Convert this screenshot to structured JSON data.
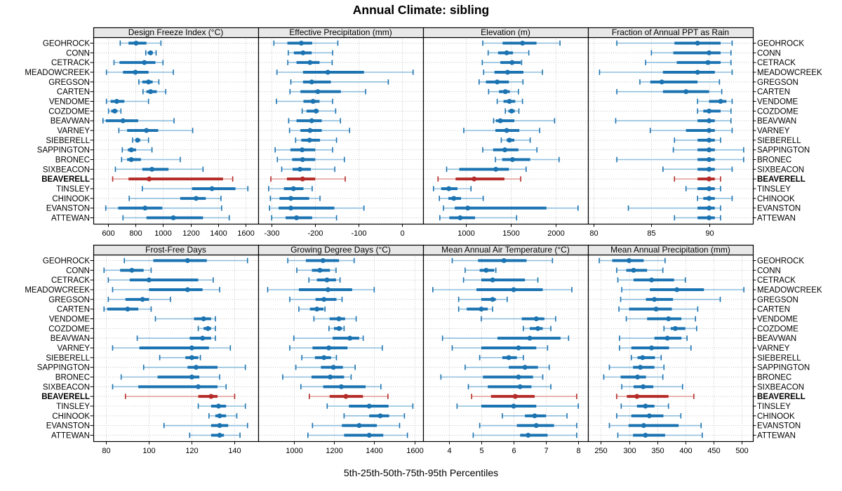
{
  "title": "Annual Climate: sibling",
  "footer": "5th-25th-50th-75th-95th Percentiles",
  "highlight_station": "BEAVERELL",
  "colors": {
    "series": "#1b73b1",
    "series_light": "#8fbedd",
    "highlight": "#b42b28",
    "highlight_light": "#e2a29e",
    "grid": "#c8c8c8",
    "header_bg": "#e8e8e8",
    "border": "#000000"
  },
  "stations": [
    "GEOHROCK",
    "CONN",
    "CETRACK",
    "MEADOWCREEK",
    "GREGSON",
    "CARTEN",
    "VENDOME",
    "COZDOME",
    "BEAVWAN",
    "VARNEY",
    "SIEBERELL",
    "SAPPINGTON",
    "BRONEC",
    "SIXBEACON",
    "BEAVERELL",
    "TINSLEY",
    "CHINOOK",
    "EVANSTON",
    "ATTEWAN"
  ],
  "chart_data": {
    "type": "dot-whisker",
    "percentiles": [
      5,
      25,
      50,
      75,
      95
    ],
    "layout": "2 rows x 4 columns of panels, shared station axis, highlighted station in red",
    "panels": [
      {
        "title": "Design Freeze Index (°C)",
        "xlim": [
          495,
          1690
        ],
        "ticks": [
          600,
          800,
          1000,
          1200,
          1400,
          1600
        ],
        "values": [
          [
            690,
            750,
            805,
            880,
            985
          ],
          [
            875,
            890,
            910,
            925,
            950
          ],
          [
            645,
            685,
            865,
            945,
            1000
          ],
          [
            590,
            710,
            800,
            895,
            1075
          ],
          [
            825,
            850,
            895,
            925,
            970
          ],
          [
            855,
            880,
            910,
            955,
            1020
          ],
          [
            590,
            620,
            665,
            720,
            895
          ],
          [
            605,
            625,
            650,
            670,
            695
          ],
          [
            565,
            585,
            710,
            820,
            1080
          ],
          [
            680,
            740,
            880,
            965,
            1215
          ],
          [
            780,
            800,
            815,
            835,
            895
          ],
          [
            705,
            745,
            770,
            805,
            920
          ],
          [
            700,
            740,
            770,
            840,
            1125
          ],
          [
            655,
            850,
            920,
            1040,
            1290
          ],
          [
            635,
            750,
            900,
            1435,
            1505
          ],
          [
            850,
            1210,
            1355,
            1525,
            1615
          ],
          [
            755,
            1125,
            1240,
            1310,
            1420
          ],
          [
            585,
            675,
            870,
            995,
            1425
          ],
          [
            710,
            880,
            1075,
            1290,
            1480
          ]
        ]
      },
      {
        "title": "Effective Precipitation (mm)",
        "xlim": [
          -331,
          48
        ],
        "ticks": [
          -300,
          -200,
          -100,
          0
        ],
        "values": [
          [
            -295,
            -264,
            -232,
            -207,
            -148
          ],
          [
            -262,
            -249,
            -228,
            -208,
            -160
          ],
          [
            -263,
            -243,
            -212,
            -190,
            -161
          ],
          [
            -288,
            -228,
            -171,
            -88,
            25
          ],
          [
            -256,
            -228,
            -208,
            -164,
            -32
          ],
          [
            -258,
            -234,
            -194,
            -141,
            -84
          ],
          [
            -289,
            -227,
            -205,
            -190,
            -160
          ],
          [
            -230,
            -220,
            -198,
            -192,
            -153
          ],
          [
            -261,
            -243,
            -208,
            -185,
            -142
          ],
          [
            -259,
            -234,
            -212,
            -185,
            -121
          ],
          [
            -245,
            -232,
            -213,
            -189,
            -151
          ],
          [
            -292,
            -257,
            -230,
            -200,
            -160
          ],
          [
            -287,
            -253,
            -229,
            -200,
            -133
          ],
          [
            -277,
            -252,
            -235,
            -210,
            -155
          ],
          [
            -302,
            -265,
            -229,
            -200,
            -131
          ],
          [
            -307,
            -272,
            -250,
            -227,
            -207
          ],
          [
            -303,
            -282,
            -256,
            -214,
            -189
          ],
          [
            -305,
            -284,
            -256,
            -156,
            -88
          ],
          [
            -300,
            -268,
            -243,
            -207,
            -151
          ]
        ]
      },
      {
        "title": "Elevation (m)",
        "xlim": [
          530,
          2355
        ],
        "ticks": [
          1000,
          1500,
          2000
        ],
        "values": [
          [
            1190,
            1410,
            1630,
            1785,
            2045
          ],
          [
            1250,
            1360,
            1455,
            1525,
            1700
          ],
          [
            1185,
            1385,
            1515,
            1610,
            1620
          ],
          [
            1200,
            1320,
            1465,
            1640,
            1850
          ],
          [
            1150,
            1225,
            1350,
            1480,
            1635
          ],
          [
            1255,
            1370,
            1440,
            1490,
            1585
          ],
          [
            1350,
            1420,
            1485,
            1550,
            1630
          ],
          [
            1440,
            1475,
            1510,
            1545,
            1590
          ],
          [
            1310,
            1335,
            1385,
            1540,
            1985
          ],
          [
            980,
            1330,
            1455,
            1595,
            1820
          ],
          [
            1395,
            1455,
            1485,
            1540,
            1715
          ],
          [
            1190,
            1305,
            1435,
            1585,
            1790
          ],
          [
            1330,
            1405,
            1520,
            1715,
            2035
          ],
          [
            790,
            930,
            1335,
            1480,
            1670
          ],
          [
            695,
            890,
            1095,
            1430,
            1610
          ],
          [
            645,
            730,
            815,
            910,
            1060
          ],
          [
            710,
            810,
            870,
            950,
            1195
          ],
          [
            755,
            880,
            1025,
            1895,
            2245
          ],
          [
            715,
            820,
            940,
            1105,
            1565
          ]
        ]
      },
      {
        "title": "Fraction of Annual PPT as Rain",
        "xlim": [
          79.5,
          93.8
        ],
        "ticks": [
          80,
          85,
          90
        ],
        "values": [
          [
            82,
            87,
            89,
            91,
            92
          ],
          [
            85,
            86.9,
            90,
            91,
            91.9
          ],
          [
            84.5,
            87.2,
            89.9,
            91,
            91.9
          ],
          [
            80.5,
            86,
            89,
            90.5,
            92
          ],
          [
            84,
            84.9,
            85.9,
            89,
            90.9
          ],
          [
            82,
            86,
            88,
            90,
            91.1
          ],
          [
            89,
            90,
            91,
            91.5,
            92
          ],
          [
            89,
            89.5,
            90,
            91,
            91.9
          ],
          [
            81.9,
            89,
            90,
            90.5,
            91.9
          ],
          [
            84.9,
            88,
            90,
            90.5,
            92
          ],
          [
            87,
            89,
            90,
            90.5,
            91
          ],
          [
            86.9,
            89,
            90,
            90.5,
            93
          ],
          [
            82,
            89,
            90,
            90.5,
            93
          ],
          [
            86,
            89,
            90,
            90.5,
            92
          ],
          [
            87,
            89,
            90,
            90.5,
            91
          ],
          [
            88,
            89,
            90,
            90.5,
            91
          ],
          [
            89,
            89.5,
            90,
            90.5,
            92
          ],
          [
            83,
            89,
            90,
            90.5,
            91
          ],
          [
            87,
            89,
            90,
            90.5,
            91
          ]
        ]
      },
      {
        "title": "Frost-Free Days",
        "xlim": [
          74,
          151
        ],
        "ticks": [
          80,
          100,
          120,
          140
        ],
        "values": [
          [
            88.5,
            102,
            118,
            127,
            146
          ],
          [
            79,
            86.5,
            92,
            97.5,
            101
          ],
          [
            81,
            91,
            100,
            123,
            130
          ],
          [
            83,
            100,
            118,
            125,
            133
          ],
          [
            81,
            89,
            97,
            100,
            110
          ],
          [
            79,
            80.5,
            90,
            95,
            101
          ],
          [
            103,
            121,
            125.5,
            129,
            131
          ],
          [
            123,
            125.5,
            127.5,
            129,
            131
          ],
          [
            94.5,
            119,
            125,
            129,
            131
          ],
          [
            83,
            95.5,
            120,
            128,
            138
          ],
          [
            105,
            117,
            120,
            123,
            124
          ],
          [
            97.5,
            118,
            122,
            132,
            145
          ],
          [
            87,
            104,
            120,
            123.5,
            133
          ],
          [
            83,
            95,
            123,
            132,
            136
          ],
          [
            89,
            123,
            129,
            132,
            140
          ],
          [
            123,
            129,
            132.5,
            136,
            145
          ],
          [
            128,
            131,
            133,
            136,
            141
          ],
          [
            107,
            129,
            133,
            137,
            146
          ],
          [
            119,
            129,
            133,
            135,
            142.5
          ]
        ]
      },
      {
        "title": "Growing Degree Days (°C)",
        "xlim": [
          823,
          1643
        ],
        "ticks": [
          1000,
          1200,
          1400,
          1600
        ],
        "values": [
          [
            970,
            1060,
            1145,
            1225,
            1300
          ],
          [
            1015,
            1090,
            1130,
            1180,
            1210
          ],
          [
            1075,
            1115,
            1165,
            1210,
            1230
          ],
          [
            870,
            1025,
            1170,
            1290,
            1400
          ],
          [
            980,
            1108,
            1150,
            1212,
            1240
          ],
          [
            1025,
            1080,
            1115,
            1148,
            1155
          ],
          [
            1100,
            1178,
            1224,
            1255,
            1310
          ],
          [
            1175,
            1200,
            1225,
            1240,
            1250
          ],
          [
            1000,
            1193,
            1279,
            1325,
            1345
          ],
          [
            980,
            1093,
            1174,
            1267,
            1440
          ],
          [
            1040,
            1105,
            1150,
            1185,
            1212
          ],
          [
            1010,
            1135,
            1197,
            1244,
            1305
          ],
          [
            945,
            1088,
            1181,
            1250,
            1285
          ],
          [
            1035,
            1146,
            1236,
            1357,
            1433
          ],
          [
            1077,
            1178,
            1259,
            1344,
            1468
          ],
          [
            1166,
            1274,
            1375,
            1471,
            1592
          ],
          [
            1250,
            1375,
            1430,
            1474,
            1550
          ],
          [
            1093,
            1239,
            1325,
            1413,
            1526
          ],
          [
            1070,
            1250,
            1375,
            1445,
            1565
          ]
        ]
      },
      {
        "title": "Mean Annual Air Temperature (°C)",
        "xlim": [
          3.2,
          8.3
        ],
        "ticks": [
          4,
          5,
          6,
          7,
          8
        ],
        "values": [
          [
            4.1,
            4.9,
            5.7,
            6.4,
            7.2
          ],
          [
            4.5,
            4.95,
            5.15,
            5.4,
            5.45
          ],
          [
            4.45,
            5.0,
            5.35,
            6.35,
            6.75
          ],
          [
            3.5,
            4.85,
            6.0,
            6.9,
            7.8
          ],
          [
            4.3,
            5.0,
            5.35,
            5.45,
            5.8
          ],
          [
            4.3,
            4.55,
            5.0,
            5.2,
            5.35
          ],
          [
            5.0,
            6.25,
            6.7,
            6.95,
            7.3
          ],
          [
            6.3,
            6.5,
            6.75,
            6.9,
            7.15
          ],
          [
            3.8,
            5.5,
            6.5,
            7.45,
            7.7
          ],
          [
            4.1,
            5.0,
            6.15,
            6.7,
            7.05
          ],
          [
            4.95,
            5.65,
            5.85,
            6.1,
            6.3
          ],
          [
            4.5,
            5.85,
            6.35,
            6.75,
            7.1
          ],
          [
            3.75,
            5.05,
            6.15,
            6.6,
            6.9
          ],
          [
            4.6,
            5.2,
            6.2,
            6.55,
            7.15
          ],
          [
            4.7,
            5.3,
            6.05,
            6.65,
            7.95
          ],
          [
            4.25,
            5.0,
            6.0,
            6.7,
            8.0
          ],
          [
            5.65,
            6.35,
            6.65,
            7.0,
            7.65
          ],
          [
            4.95,
            6.1,
            6.7,
            7.25,
            7.95
          ],
          [
            4.75,
            6.2,
            6.45,
            7.05,
            7.95
          ]
        ]
      },
      {
        "title": "Mean Annual Precipitation (mm)",
        "xlim": [
          227,
          520
        ],
        "ticks": [
          250,
          300,
          350,
          400,
          450,
          500
        ],
        "values": [
          [
            247,
            270,
            300,
            326,
            364
          ],
          [
            278,
            295,
            308,
            332,
            360
          ],
          [
            280,
            308,
            340,
            380,
            400
          ],
          [
            287,
            337,
            385,
            433,
            504
          ],
          [
            285,
            330,
            345,
            378,
            462
          ],
          [
            282,
            300,
            348,
            376,
            422
          ],
          [
            295,
            332,
            370,
            393,
            418
          ],
          [
            362,
            374,
            382,
            400,
            420
          ],
          [
            283,
            345,
            368,
            393,
            403
          ],
          [
            283,
            304,
            340,
            371,
            410
          ],
          [
            304,
            315,
            324,
            346,
            357
          ],
          [
            265,
            307,
            320,
            345,
            362
          ],
          [
            255,
            285,
            315,
            330,
            360
          ],
          [
            287,
            308,
            325,
            343,
            395
          ],
          [
            278,
            296,
            314,
            370,
            415
          ],
          [
            286,
            314,
            329,
            345,
            370
          ],
          [
            278,
            304,
            336,
            361,
            392
          ],
          [
            265,
            299,
            326,
            388,
            428
          ],
          [
            280,
            307,
            329,
            364,
            430
          ]
        ]
      }
    ]
  }
}
